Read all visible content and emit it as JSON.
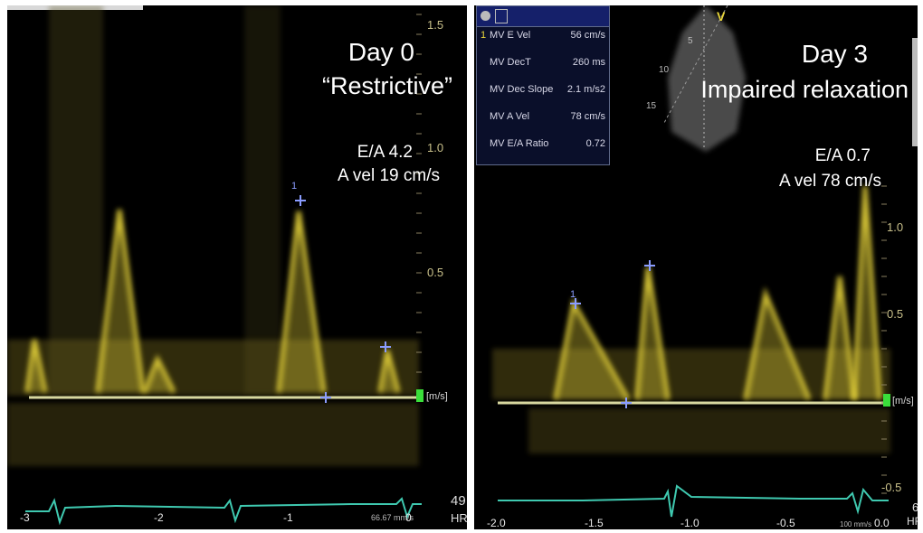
{
  "left": {
    "title": "Day 0",
    "subtitle": "“Restrictive”",
    "ratio": "E/A 4.2",
    "a_vel": "A vel 19 cm/s",
    "scale": [
      "1.5",
      "1.0",
      "0.5"
    ],
    "unit": "[m/s]",
    "hr_value": "49",
    "hr_label": "HR",
    "sweep": "66.67 mm/s",
    "time_ticks": [
      "-3",
      "-2",
      "-1",
      "0"
    ],
    "caliper_mark": "1"
  },
  "right": {
    "title": "Day 3",
    "subtitle": "Impaired relaxation",
    "ratio": "E/A 0.7",
    "a_vel": "A vel 78 cm/s",
    "scale": [
      "1.0",
      "0.5",
      "-0.5"
    ],
    "unit": "[m/s]",
    "hr_value": "6",
    "hr_label": "HR",
    "sweep": "100 mm/s",
    "time_ticks": [
      "-2.0",
      "-1.5",
      "-1.0",
      "-0.5",
      "0.0"
    ],
    "caliper_mark": "1",
    "measurements": [
      {
        "index": "1",
        "label": "MV E Vel",
        "value": "56 cm/s"
      },
      {
        "index": "",
        "label": "MV DecT",
        "value": "260 ms"
      },
      {
        "index": "",
        "label": "MV Dec Slope",
        "value": "2.1 m/s2"
      },
      {
        "index": "",
        "label": "MV A Vel",
        "value": "78 cm/s"
      },
      {
        "index": "",
        "label": "MV E/A Ratio",
        "value": "0.72"
      }
    ],
    "depth_marks": [
      "5",
      "10",
      "15"
    ],
    "probe_mark": "V"
  },
  "colors": {
    "doppler": "#e8d53a",
    "baseline": "#d8d8a0",
    "ecg": "#3fc9b0",
    "caliper": "#8a9cff",
    "marker": "#3adf3a"
  }
}
